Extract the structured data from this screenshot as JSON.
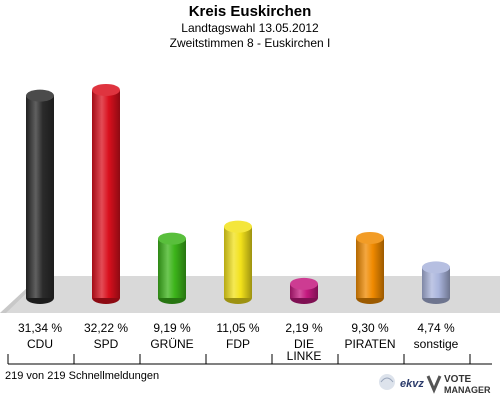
{
  "header": {
    "title": "Kreis Euskirchen",
    "subtitle1": "Landtagswahl 13.05.2012",
    "subtitle2": "Zweitstimmen 8 - Euskirchen I"
  },
  "footer": {
    "note": "219 von 219 Schnellmeldungen",
    "logo_brand": "ekvz",
    "logo_vote": "VOTE",
    "logo_manager": "MANAGER"
  },
  "chart_data": {
    "type": "bar",
    "categories": [
      "CDU",
      "SPD",
      "GRÜNE",
      "FDP",
      "DIE LINKE",
      "PIRATEN",
      "sonstige"
    ],
    "values": [
      31.34,
      32.22,
      9.19,
      11.05,
      2.19,
      9.3,
      4.74
    ],
    "value_labels": [
      "31,34 %",
      "32,22 %",
      "9,19 %",
      "11,05 %",
      "2,19 %",
      "9,30 %",
      "4,74 %"
    ],
    "colors": [
      "#2b2b2b",
      "#d9101d",
      "#3cb41a",
      "#f2e11a",
      "#c4197f",
      "#f08a00",
      "#a9b4dc"
    ],
    "ylim": [
      0,
      35
    ]
  }
}
